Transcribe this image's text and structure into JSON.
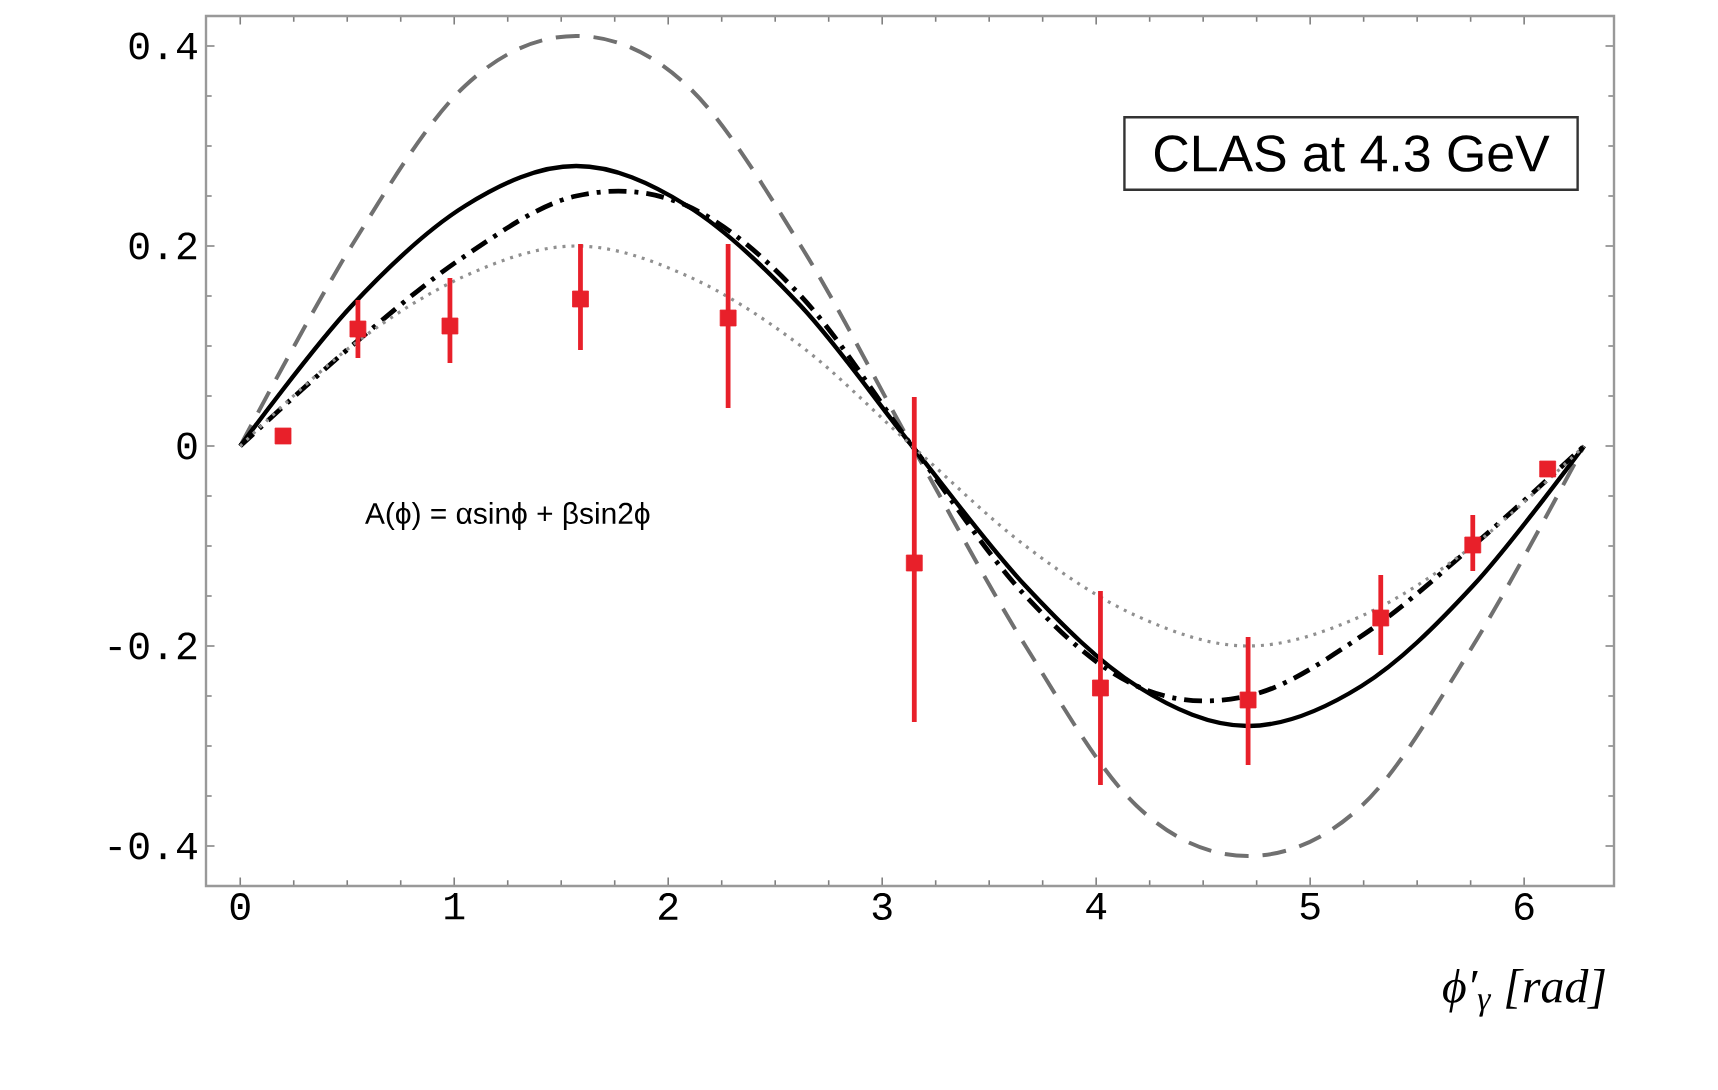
{
  "chart_data": {
    "type": "line",
    "xlabel": "ϕ′$_{γ}$ [rad]",
    "annotations": [
      "CLAS at 4.3 GeV",
      "A(ϕ) = αsinϕ + βsin2ϕ"
    ],
    "xlim": [
      -0.16,
      6.42
    ],
    "ylim": [
      -0.44,
      0.43
    ],
    "xticks": [
      0,
      1,
      2,
      3,
      4,
      5,
      6
    ],
    "yticks": [
      -0.4,
      -0.2,
      0,
      0.2,
      0.4
    ],
    "series": [
      {
        "color": "#707070",
        "line_style": "dashed",
        "marker": "none",
        "x": [
          0,
          0.52,
          1.05,
          1.57,
          2.09,
          2.62,
          3.14,
          3.67,
          4.19,
          4.71,
          5.24,
          5.76,
          6.28
        ],
        "values": [
          0,
          0.2,
          0.36,
          0.41,
          0.36,
          0.2,
          0,
          -0.2,
          -0.36,
          -0.41,
          -0.36,
          -0.2,
          0
        ]
      },
      {
        "color": "#000000",
        "line_style": "solid",
        "marker": "none",
        "x": [
          0,
          0.52,
          1.05,
          1.57,
          2.09,
          2.62,
          3.14,
          3.67,
          4.19,
          4.71,
          5.24,
          5.76,
          6.28
        ],
        "values": [
          0,
          0.14,
          0.24,
          0.28,
          0.24,
          0.14,
          0,
          -0.14,
          -0.24,
          -0.28,
          -0.24,
          -0.14,
          0
        ]
      },
      {
        "color": "#000000",
        "line_style": "dashdot",
        "marker": "none",
        "x": [
          0,
          0.52,
          1.05,
          1.57,
          2.09,
          2.62,
          3.14,
          3.67,
          4.19,
          4.71,
          5.24,
          5.76,
          6.28
        ],
        "values": [
          0,
          0.1,
          0.19,
          0.25,
          0.24,
          0.15,
          0,
          -0.15,
          -0.24,
          -0.25,
          -0.19,
          -0.1,
          0
        ]
      },
      {
        "color": "#909090",
        "line_style": "dotted",
        "marker": "none",
        "x": [
          0,
          0.52,
          1.05,
          1.57,
          2.09,
          2.62,
          3.14,
          3.67,
          4.19,
          4.71,
          5.24,
          5.76,
          6.28
        ],
        "values": [
          0,
          0.1,
          0.17,
          0.2,
          0.17,
          0.1,
          0,
          -0.1,
          -0.17,
          -0.2,
          -0.17,
          -0.1,
          0
        ]
      },
      {
        "type": "scatter",
        "color": "#e8202a",
        "marker": "square",
        "x": [
          0.2,
          0.55,
          0.98,
          1.59,
          2.28,
          3.15,
          4.02,
          4.71,
          5.33,
          5.76,
          6.11
        ],
        "values": [
          0.01,
          0.117,
          0.12,
          0.147,
          0.128,
          -0.117,
          -0.242,
          -0.254,
          -0.172,
          -0.099,
          -0.023
        ],
        "errors": [
          null,
          [
            0.088,
            0.146
          ],
          [
            0.083,
            0.168
          ],
          [
            0.096,
            0.202
          ],
          [
            0.038,
            0.202
          ],
          [
            -0.276,
            0.049
          ],
          [
            -0.339,
            -0.145
          ],
          [
            -0.319,
            -0.191
          ],
          [
            -0.209,
            -0.129
          ],
          [
            -0.125,
            -0.069
          ],
          null
        ]
      }
    ]
  }
}
